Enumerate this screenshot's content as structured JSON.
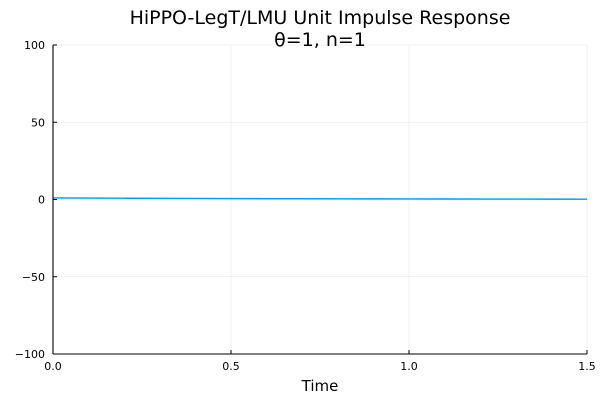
{
  "chart_data": {
    "type": "line",
    "title": "HiPPO-LegT/LMU Unit Impulse Response",
    "subtitle": "θ=1, n=1",
    "xlabel": "Time",
    "ylabel": "",
    "xlim": [
      0,
      1.5
    ],
    "ylim": [
      -100,
      100
    ],
    "xticks": [
      0.0,
      0.5,
      1.0,
      1.5
    ],
    "xtick_labels": [
      "0.0",
      "0.5",
      "1.0",
      "1.5"
    ],
    "yticks": [
      -100,
      -50,
      0,
      50,
      100
    ],
    "ytick_labels": [
      "−100",
      "−50",
      "0",
      "50",
      "100"
    ],
    "grid": true,
    "legend": "none",
    "series": [
      {
        "color": "#009AFA",
        "x": [
          0.0,
          0.1,
          0.2,
          0.3,
          0.4,
          0.5,
          0.6,
          0.7,
          0.8,
          0.9,
          1.0,
          1.1,
          1.2,
          1.3,
          1.4,
          1.5
        ],
        "y": [
          1.0,
          0.905,
          0.819,
          0.741,
          0.67,
          0.607,
          0.549,
          0.497,
          0.449,
          0.407,
          0.368,
          0.333,
          0.301,
          0.273,
          0.247,
          0.223
        ]
      }
    ]
  }
}
